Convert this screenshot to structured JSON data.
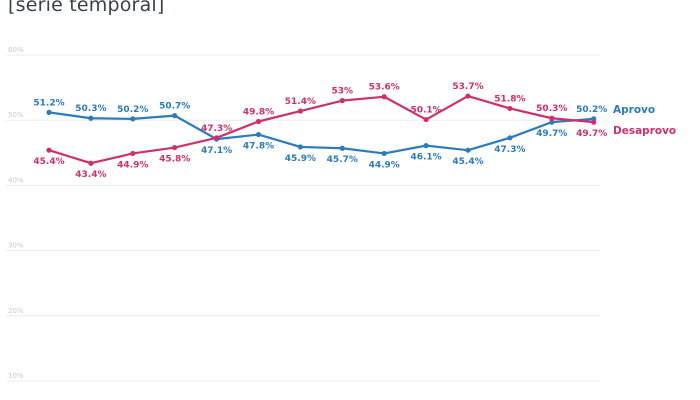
{
  "header": {
    "title": "[série temporal]"
  },
  "colors": {
    "approve": "#2a7bbf",
    "disapprove": "#d12f6b",
    "grid": "#ececef",
    "tick": "#c7c9cf"
  },
  "chart_data": {
    "type": "line",
    "title": "",
    "xlabel": "",
    "ylabel": "",
    "ylim": [
      10,
      60
    ],
    "yticks": [
      "10%",
      "20%",
      "30%",
      "40%",
      "50%",
      "60%"
    ],
    "grid": true,
    "legend": "right, at end of lines",
    "series": [
      {
        "name": "Aprovo",
        "values": [
          51.2,
          50.3,
          50.2,
          50.7,
          47.1,
          47.8,
          45.9,
          45.7,
          44.9,
          46.1,
          45.4,
          47.3,
          49.7,
          50.2
        ],
        "labels": [
          "51.2%",
          "50.3%",
          "50.2%",
          "50.7%",
          "47.1%",
          "47.8%",
          "45.9%",
          "45.7%",
          "44.9%",
          "46.1%",
          "45.4%",
          "47.3%",
          "49.7%",
          "50.2%"
        ]
      },
      {
        "name": "Desaprovo",
        "values": [
          45.4,
          43.4,
          44.9,
          45.8,
          47.3,
          49.8,
          51.4,
          53,
          53.6,
          50.1,
          53.7,
          51.8,
          50.3,
          49.7
        ],
        "labels": [
          "45.4%",
          "43.4%",
          "44.9%",
          "45.8%",
          "47.3%",
          "49.8%",
          "51.4%",
          "53%",
          "53.6%",
          "50.1%",
          "53.7%",
          "51.8%",
          "50.3%",
          "49.7%"
        ]
      }
    ]
  }
}
